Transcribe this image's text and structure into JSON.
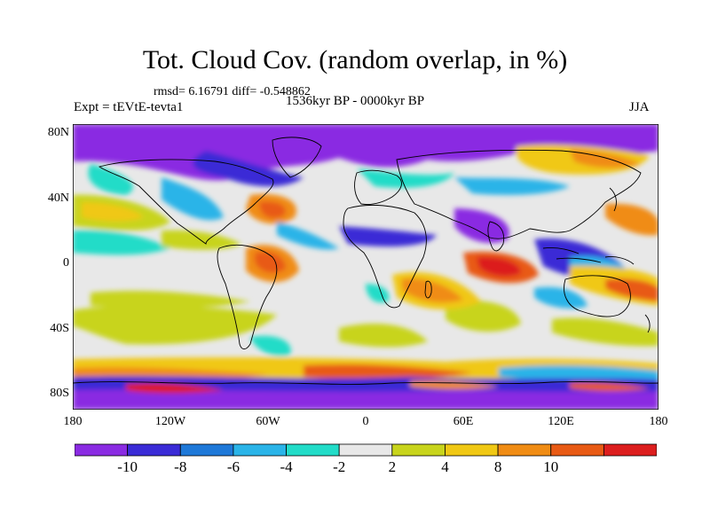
{
  "title": "Tot. Cloud Cov. (random overlap, in %)",
  "stats": "rmsd= 6.16791 diff= -0.548862",
  "period": "1536kyr BP - 0000kyr BP",
  "experiment": "Expt = tEVtE-tevta1",
  "season": "JJA",
  "map": {
    "y_ticks": [
      "80N",
      "40N",
      "0",
      "40S",
      "80S"
    ],
    "x_ticks": [
      "180",
      "120W",
      "60W",
      "0",
      "60E",
      "120E",
      "180"
    ]
  },
  "colorbar": {
    "labels": [
      "-10",
      "-8",
      "-6",
      "-4",
      "-2",
      "2",
      "4",
      "8",
      "10"
    ],
    "colors": [
      "#8a2be2",
      "#3a2bd6",
      "#1e78d8",
      "#2ab4e8",
      "#22dcc8",
      "#e8e8e8",
      "#c8d41c",
      "#f0c814",
      "#f08c14",
      "#e85a14",
      "#dc1e1e"
    ]
  }
}
